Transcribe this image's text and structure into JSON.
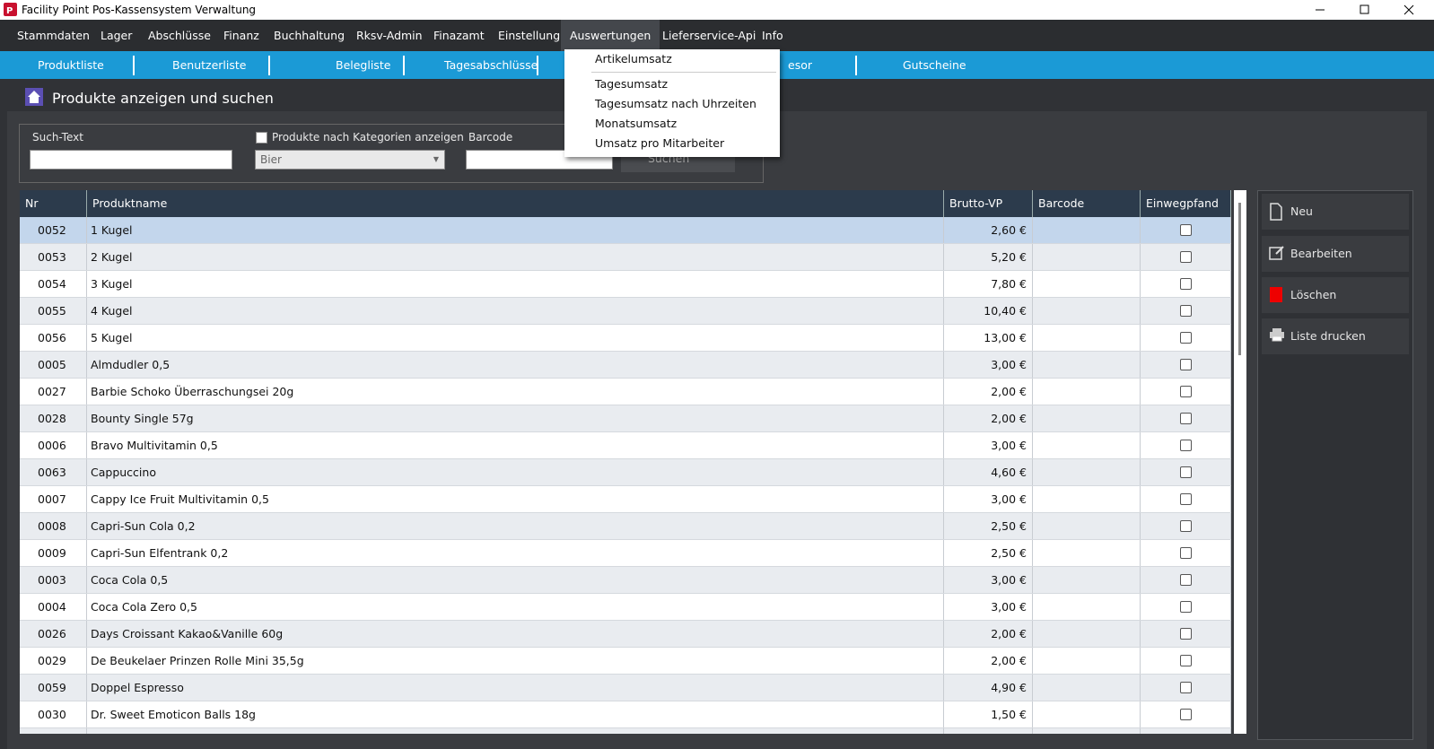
{
  "window": {
    "title": "Facility Point Pos-Kassensystem Verwaltung"
  },
  "menu": [
    "Stammdaten",
    "Lager",
    "Abschlüsse",
    "Finanz",
    "Buchhaltung",
    "Rksv-Admin",
    "Finazamt",
    "Einstellung",
    "Auswertungen",
    "Lieferservice-Api",
    "Info"
  ],
  "toolbar": [
    "Produktliste",
    "Benutzerliste",
    "Belegliste",
    "Tagesabschlüsse",
    "esor",
    "Gutscheine"
  ],
  "dropdown": [
    "Artikelumsatz",
    "Tagesumsatz",
    "Tagesumsatz nach Uhrzeiten",
    "Monatsumsatz",
    "Umsatz pro Mitarbeiter"
  ],
  "header": {
    "title": "Produkte anzeigen und suchen"
  },
  "filters": {
    "search_label": "Such-Text",
    "category_checkbox": "Produkte nach Kategorien anzeigen",
    "category_value": "Bier",
    "barcode_label": "Barcode",
    "search_button": "Suchen"
  },
  "table": {
    "columns": [
      "Nr",
      "Produktname",
      "Brutto-VP",
      "Barcode",
      "Einwegpfand"
    ],
    "rows": [
      [
        "0052",
        "1 Kugel",
        "2,60 €"
      ],
      [
        "0053",
        "2 Kugel",
        "5,20 €"
      ],
      [
        "0054",
        "3 Kugel",
        "7,80 €"
      ],
      [
        "0055",
        "4 Kugel",
        "10,40 €"
      ],
      [
        "0056",
        "5 Kugel",
        "13,00 €"
      ],
      [
        "0005",
        "Almdudler 0,5",
        "3,00 €"
      ],
      [
        "0027",
        "Barbie Schoko Überraschungsei 20g",
        "2,00 €"
      ],
      [
        "0028",
        "Bounty Single 57g",
        "2,00 €"
      ],
      [
        "0006",
        "Bravo Multivitamin 0,5",
        "3,00 €"
      ],
      [
        "0063",
        "Cappuccino",
        "4,60 €"
      ],
      [
        "0007",
        "Cappy Ice Fruit Multivitamin 0,5",
        "3,00 €"
      ],
      [
        "0008",
        "Capri-Sun Cola 0,2",
        "2,50 €"
      ],
      [
        "0009",
        "Capri-Sun Elfentrank 0,2",
        "2,50 €"
      ],
      [
        "0003",
        "Coca Cola 0,5",
        "3,00 €"
      ],
      [
        "0004",
        "Coca Cola Zero 0,5",
        "3,00 €"
      ],
      [
        "0026",
        "Days Croissant Kakao&Vanille 60g",
        "2,00 €"
      ],
      [
        "0029",
        "De Beukelaer Prinzen Rolle Mini 35,5g",
        "2,00 €"
      ],
      [
        "0059",
        "Doppel Espresso",
        "4,90 €"
      ],
      [
        "0030",
        "Dr. Sweet Emoticon Balls 18g",
        "1,50 €"
      ]
    ]
  },
  "sidebar": [
    "Neu",
    "Bearbeiten",
    "Löschen",
    "Liste drucken"
  ]
}
